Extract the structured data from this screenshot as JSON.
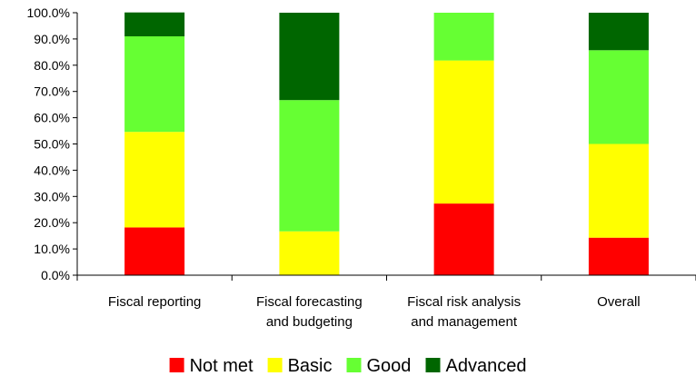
{
  "chart_data": {
    "type": "bar",
    "stacked": true,
    "categories": [
      [
        "Fiscal reporting"
      ],
      [
        "Fiscal forecasting",
        "and budgeting"
      ],
      [
        "Fiscal risk analysis",
        "and management"
      ],
      [
        "Overall"
      ]
    ],
    "series": [
      {
        "name": "Not met",
        "color": "#ff0000",
        "values": [
          18.2,
          0.0,
          27.3,
          14.3
        ]
      },
      {
        "name": "Basic",
        "color": "#ffff00",
        "values": [
          36.4,
          16.7,
          54.5,
          35.7
        ]
      },
      {
        "name": "Good",
        "color": "#66ff33",
        "values": [
          36.4,
          50.0,
          18.2,
          35.7
        ]
      },
      {
        "name": "Advanced",
        "color": "#006600",
        "values": [
          9.1,
          33.3,
          0.0,
          14.3
        ]
      }
    ],
    "ylim": [
      0,
      100
    ],
    "yticks": [
      "0.0%",
      "10.0%",
      "20.0%",
      "30.0%",
      "40.0%",
      "50.0%",
      "60.0%",
      "70.0%",
      "80.0%",
      "90.0%",
      "100.0%"
    ],
    "legend_position": "bottom",
    "grid": false
  }
}
